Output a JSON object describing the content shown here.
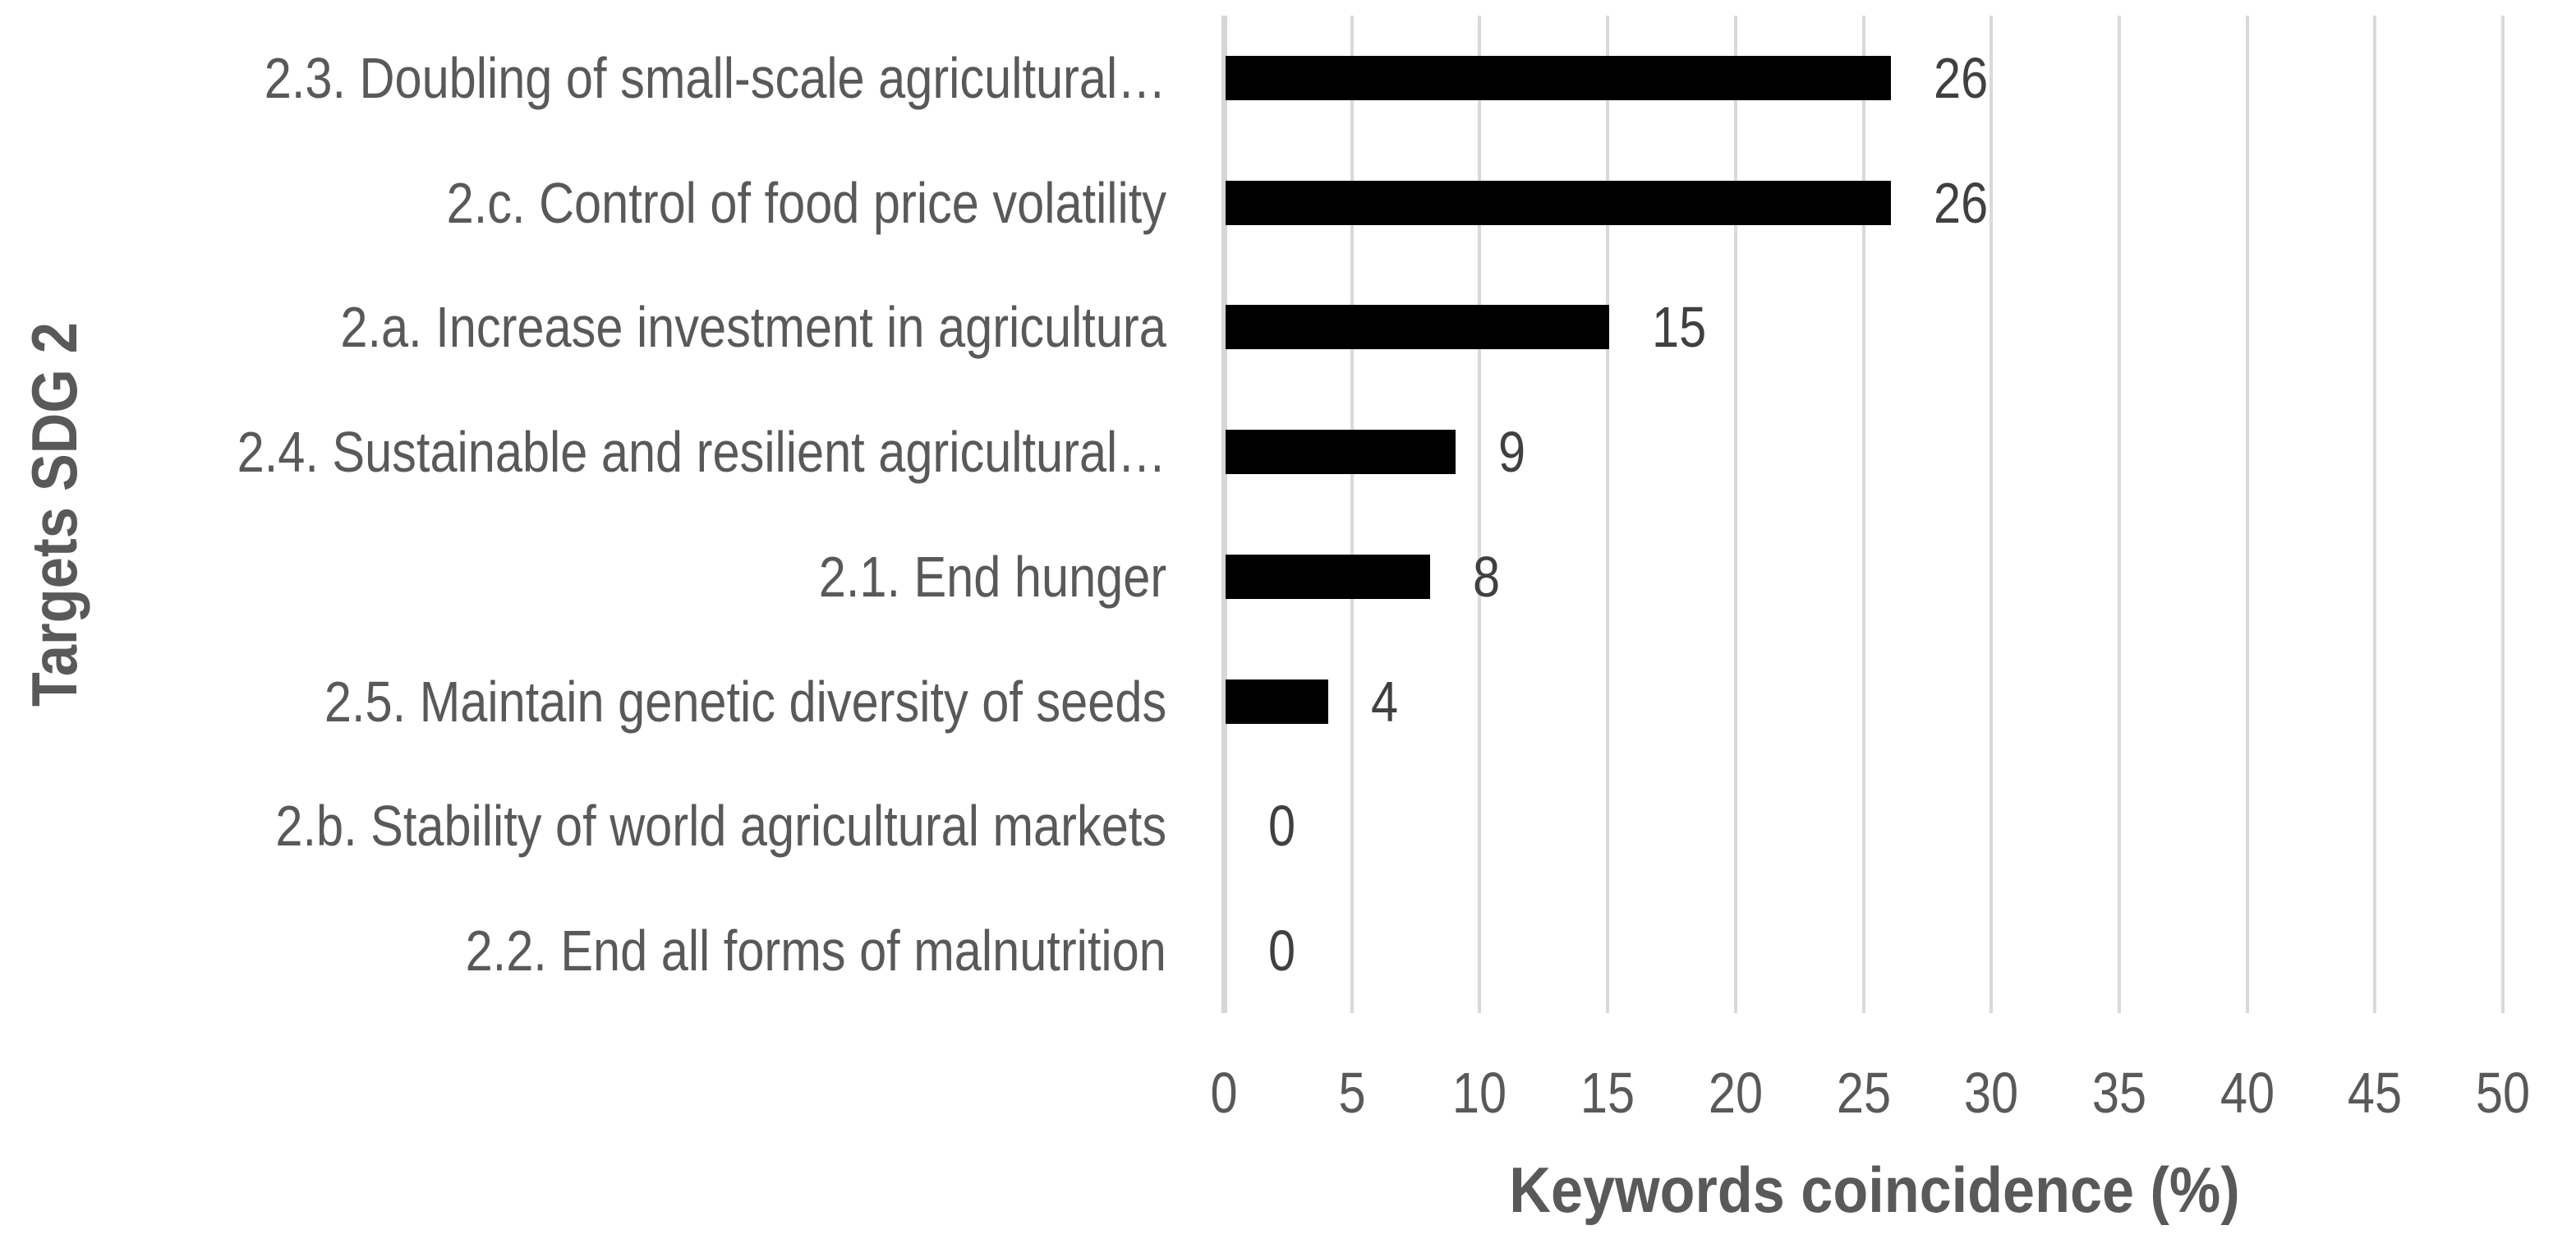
{
  "chart_data": {
    "type": "bar",
    "orientation": "horizontal",
    "title": "",
    "xlabel": "Keywords coincidence (%)",
    "ylabel": "Targets SDG 2",
    "categories": [
      "2.3. Doubling of small-scale agricultural…",
      "2.c. Control of food price volatility",
      "2.a. Increase investment in agricultura",
      "2.4. Sustainable and resilient agricultural…",
      "2.1. End hunger",
      "2.5. Maintain genetic diversity of seeds",
      "2.b. Stability of world agricultural markets",
      "2.2. End all forms of malnutrition"
    ],
    "values": [
      26,
      26,
      15,
      9,
      8,
      4,
      0,
      0
    ],
    "xlim": [
      0,
      50
    ],
    "xticks": [
      0,
      5,
      10,
      15,
      20,
      25,
      30,
      35,
      40,
      45,
      50
    ],
    "grid": "vertical-gridlines-on",
    "legend": "none",
    "data_labels_shown": true,
    "colors": {
      "bar": "#000000",
      "gridline": "#d9d9d9",
      "axis_line": "#d6d6d6",
      "axis_text": "#595959",
      "data_label_text": "#404040",
      "background": "#ffffff"
    }
  }
}
